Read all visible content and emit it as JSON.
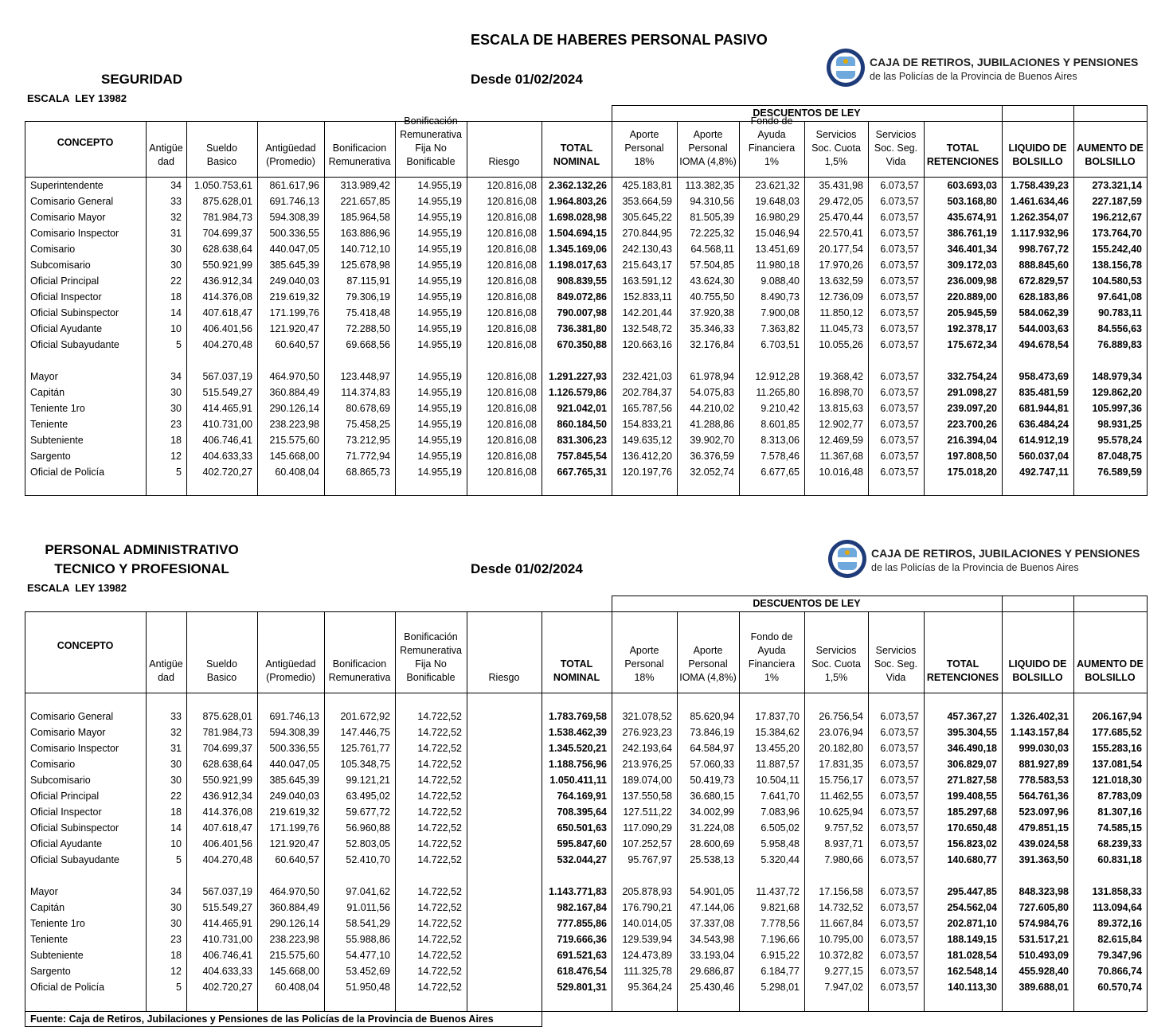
{
  "title": "ESCALA DE HABERES PERSONAL PASIVO",
  "logo": {
    "name": "CAJA DE RETIROS, JUBILACIONES Y PENSIONES",
    "subtitle": "de las Policías de la Provincia de Buenos Aires"
  },
  "columns": [
    [
      "CONCEPTO"
    ],
    [
      "Antigüe",
      "dad"
    ],
    [
      "Sueldo",
      "Basico"
    ],
    [
      "Antigüedad",
      "(Promedio)"
    ],
    [
      "Bonificacion",
      "Remunerativa"
    ],
    [
      "Bonificación",
      "Remunerativa",
      "Fija No",
      "Bonificable"
    ],
    [
      "Riesgo"
    ],
    [
      "TOTAL",
      "NOMINAL"
    ],
    [
      "Aporte",
      "Personal",
      "18%"
    ],
    [
      "Aporte",
      "Personal",
      "IOMA (4,8%)"
    ],
    [
      "Fondo de",
      "Ayuda",
      "Financiera",
      "1%"
    ],
    [
      "Servicios",
      "Soc. Cuota",
      "1,5%"
    ],
    [
      "Servicios",
      "Soc. Seg.",
      "Vida"
    ],
    [
      "TOTAL",
      "RETENCIONES"
    ],
    [
      "LIQUIDO DE",
      "BOLSILLO"
    ],
    [
      "AUMENTO DE",
      "BOLSILLO"
    ]
  ],
  "sections": [
    {
      "heading": [
        "SEGURIDAD"
      ],
      "date": "Desde 01/02/2024",
      "law": "ESCALA  LEY 13982",
      "group_header": "DESCUENTOS DE LEY",
      "groups": [
        [
          [
            "Superintendente",
            34,
            "1.050.753,61",
            "861.617,96",
            "313.989,42",
            "14.955,19",
            "120.816,08",
            "2.362.132,26",
            "425.183,81",
            "113.382,35",
            "23.621,32",
            "35.431,98",
            "6.073,57",
            "603.693,03",
            "1.758.439,23",
            "273.321,14"
          ],
          [
            "Comisario General",
            33,
            "875.628,01",
            "691.746,13",
            "221.657,85",
            "14.955,19",
            "120.816,08",
            "1.964.803,26",
            "353.664,59",
            "94.310,56",
            "19.648,03",
            "29.472,05",
            "6.073,57",
            "503.168,80",
            "1.461.634,46",
            "227.187,59"
          ],
          [
            "Comisario Mayor",
            32,
            "781.984,73",
            "594.308,39",
            "185.964,58",
            "14.955,19",
            "120.816,08",
            "1.698.028,98",
            "305.645,22",
            "81.505,39",
            "16.980,29",
            "25.470,44",
            "6.073,57",
            "435.674,91",
            "1.262.354,07",
            "196.212,67"
          ],
          [
            "Comisario Inspector",
            31,
            "704.699,37",
            "500.336,55",
            "163.886,96",
            "14.955,19",
            "120.816,08",
            "1.504.694,15",
            "270.844,95",
            "72.225,32",
            "15.046,94",
            "22.570,41",
            "6.073,57",
            "386.761,19",
            "1.117.932,96",
            "173.764,70"
          ],
          [
            "Comisario",
            30,
            "628.638,64",
            "440.047,05",
            "140.712,10",
            "14.955,19",
            "120.816,08",
            "1.345.169,06",
            "242.130,43",
            "64.568,11",
            "13.451,69",
            "20.177,54",
            "6.073,57",
            "346.401,34",
            "998.767,72",
            "155.242,40"
          ],
          [
            "Subcomisario",
            30,
            "550.921,99",
            "385.645,39",
            "125.678,98",
            "14.955,19",
            "120.816,08",
            "1.198.017,63",
            "215.643,17",
            "57.504,85",
            "11.980,18",
            "17.970,26",
            "6.073,57",
            "309.172,03",
            "888.845,60",
            "138.156,78"
          ],
          [
            "Oficial Principal",
            22,
            "436.912,34",
            "249.040,03",
            "87.115,91",
            "14.955,19",
            "120.816,08",
            "908.839,55",
            "163.591,12",
            "43.624,30",
            "9.088,40",
            "13.632,59",
            "6.073,57",
            "236.009,98",
            "672.829,57",
            "104.580,53"
          ],
          [
            "Oficial Inspector",
            18,
            "414.376,08",
            "219.619,32",
            "79.306,19",
            "14.955,19",
            "120.816,08",
            "849.072,86",
            "152.833,11",
            "40.755,50",
            "8.490,73",
            "12.736,09",
            "6.073,57",
            "220.889,00",
            "628.183,86",
            "97.641,08"
          ],
          [
            "Oficial Subinspector",
            14,
            "407.618,47",
            "171.199,76",
            "75.418,48",
            "14.955,19",
            "120.816,08",
            "790.007,98",
            "142.201,44",
            "37.920,38",
            "7.900,08",
            "11.850,12",
            "6.073,57",
            "205.945,59",
            "584.062,39",
            "90.783,11"
          ],
          [
            "Oficial Ayudante",
            10,
            "406.401,56",
            "121.920,47",
            "72.288,50",
            "14.955,19",
            "120.816,08",
            "736.381,80",
            "132.548,72",
            "35.346,33",
            "7.363,82",
            "11.045,73",
            "6.073,57",
            "192.378,17",
            "544.003,63",
            "84.556,63"
          ],
          [
            "Oficial Subayudante",
            5,
            "404.270,48",
            "60.640,57",
            "69.668,56",
            "14.955,19",
            "120.816,08",
            "670.350,88",
            "120.663,16",
            "32.176,84",
            "6.703,51",
            "10.055,26",
            "6.073,57",
            "175.672,34",
            "494.678,54",
            "76.889,83"
          ]
        ],
        [
          [
            "Mayor",
            34,
            "567.037,19",
            "464.970,50",
            "123.448,97",
            "14.955,19",
            "120.816,08",
            "1.291.227,93",
            "232.421,03",
            "61.978,94",
            "12.912,28",
            "19.368,42",
            "6.073,57",
            "332.754,24",
            "958.473,69",
            "148.979,34"
          ],
          [
            "Capitán",
            30,
            "515.549,27",
            "360.884,49",
            "114.374,83",
            "14.955,19",
            "120.816,08",
            "1.126.579,86",
            "202.784,37",
            "54.075,83",
            "11.265,80",
            "16.898,70",
            "6.073,57",
            "291.098,27",
            "835.481,59",
            "129.862,20"
          ],
          [
            "Teniente 1ro",
            30,
            "414.465,91",
            "290.126,14",
            "80.678,69",
            "14.955,19",
            "120.816,08",
            "921.042,01",
            "165.787,56",
            "44.210,02",
            "9.210,42",
            "13.815,63",
            "6.073,57",
            "239.097,20",
            "681.944,81",
            "105.997,36"
          ],
          [
            "Teniente",
            23,
            "410.731,00",
            "238.223,98",
            "75.458,25",
            "14.955,19",
            "120.816,08",
            "860.184,50",
            "154.833,21",
            "41.288,86",
            "8.601,85",
            "12.902,77",
            "6.073,57",
            "223.700,26",
            "636.484,24",
            "98.931,25"
          ],
          [
            "Subteniente",
            18,
            "406.746,41",
            "215.575,60",
            "73.212,95",
            "14.955,19",
            "120.816,08",
            "831.306,23",
            "149.635,12",
            "39.902,70",
            "8.313,06",
            "12.469,59",
            "6.073,57",
            "216.394,04",
            "614.912,19",
            "95.578,24"
          ],
          [
            "Sargento",
            12,
            "404.633,33",
            "145.668,00",
            "71.772,94",
            "14.955,19",
            "120.816,08",
            "757.845,54",
            "136.412,20",
            "36.376,59",
            "7.578,46",
            "11.367,68",
            "6.073,57",
            "197.808,50",
            "560.037,04",
            "87.048,75"
          ],
          [
            "Oficial de Policía",
            5,
            "402.720,27",
            "60.408,04",
            "68.865,73",
            "14.955,19",
            "120.816,08",
            "667.765,31",
            "120.197,76",
            "32.052,74",
            "6.677,65",
            "10.016,48",
            "6.073,57",
            "175.018,20",
            "492.747,11",
            "76.589,59"
          ]
        ]
      ]
    },
    {
      "heading": [
        "PERSONAL ADMINISTRATIVO",
        "TECNICO Y PROFESIONAL"
      ],
      "date": "Desde 01/02/2024",
      "law": "ESCALA  LEY 13982",
      "group_header": "DESCUENTOS DE LEY",
      "groups": [
        [
          [
            "Comisario General",
            33,
            "875.628,01",
            "691.746,13",
            "201.672,92",
            "14.722,52",
            null,
            "1.783.769,58",
            "321.078,52",
            "85.620,94",
            "17.837,70",
            "26.756,54",
            "6.073,57",
            "457.367,27",
            "1.326.402,31",
            "206.167,94"
          ],
          [
            "Comisario Mayor",
            32,
            "781.984,73",
            "594.308,39",
            "147.446,75",
            "14.722,52",
            null,
            "1.538.462,39",
            "276.923,23",
            "73.846,19",
            "15.384,62",
            "23.076,94",
            "6.073,57",
            "395.304,55",
            "1.143.157,84",
            "177.685,52"
          ],
          [
            "Comisario Inspector",
            31,
            "704.699,37",
            "500.336,55",
            "125.761,77",
            "14.722,52",
            null,
            "1.345.520,21",
            "242.193,64",
            "64.584,97",
            "13.455,20",
            "20.182,80",
            "6.073,57",
            "346.490,18",
            "999.030,03",
            "155.283,16"
          ],
          [
            "Comisario",
            30,
            "628.638,64",
            "440.047,05",
            "105.348,75",
            "14.722,52",
            null,
            "1.188.756,96",
            "213.976,25",
            "57.060,33",
            "11.887,57",
            "17.831,35",
            "6.073,57",
            "306.829,07",
            "881.927,89",
            "137.081,54"
          ],
          [
            "Subcomisario",
            30,
            "550.921,99",
            "385.645,39",
            "99.121,21",
            "14.722,52",
            null,
            "1.050.411,11",
            "189.074,00",
            "50.419,73",
            "10.504,11",
            "15.756,17",
            "6.073,57",
            "271.827,58",
            "778.583,53",
            "121.018,30"
          ],
          [
            "Oficial Principal",
            22,
            "436.912,34",
            "249.040,03",
            "63.495,02",
            "14.722,52",
            null,
            "764.169,91",
            "137.550,58",
            "36.680,15",
            "7.641,70",
            "11.462,55",
            "6.073,57",
            "199.408,55",
            "564.761,36",
            "87.783,09"
          ],
          [
            "Oficial Inspector",
            18,
            "414.376,08",
            "219.619,32",
            "59.677,72",
            "14.722,52",
            null,
            "708.395,64",
            "127.511,22",
            "34.002,99",
            "7.083,96",
            "10.625,94",
            "6.073,57",
            "185.297,68",
            "523.097,96",
            "81.307,16"
          ],
          [
            "Oficial Subinspector",
            14,
            "407.618,47",
            "171.199,76",
            "56.960,88",
            "14.722,52",
            null,
            "650.501,63",
            "117.090,29",
            "31.224,08",
            "6.505,02",
            "9.757,52",
            "6.073,57",
            "170.650,48",
            "479.851,15",
            "74.585,15"
          ],
          [
            "Oficial Ayudante",
            10,
            "406.401,56",
            "121.920,47",
            "52.803,05",
            "14.722,52",
            null,
            "595.847,60",
            "107.252,57",
            "28.600,69",
            "5.958,48",
            "8.937,71",
            "6.073,57",
            "156.823,02",
            "439.024,58",
            "68.239,33"
          ],
          [
            "Oficial Subayudante",
            5,
            "404.270,48",
            "60.640,57",
            "52.410,70",
            "14.722,52",
            null,
            "532.044,27",
            "95.767,97",
            "25.538,13",
            "5.320,44",
            "7.980,66",
            "6.073,57",
            "140.680,77",
            "391.363,50",
            "60.831,18"
          ]
        ],
        [
          [
            "Mayor",
            34,
            "567.037,19",
            "464.970,50",
            "97.041,62",
            "14.722,52",
            null,
            "1.143.771,83",
            "205.878,93",
            "54.901,05",
            "11.437,72",
            "17.156,58",
            "6.073,57",
            "295.447,85",
            "848.323,98",
            "131.858,33"
          ],
          [
            "Capitán",
            30,
            "515.549,27",
            "360.884,49",
            "91.011,56",
            "14.722,52",
            null,
            "982.167,84",
            "176.790,21",
            "47.144,06",
            "9.821,68",
            "14.732,52",
            "6.073,57",
            "254.562,04",
            "727.605,80",
            "113.094,64"
          ],
          [
            "Teniente 1ro",
            30,
            "414.465,91",
            "290.126,14",
            "58.541,29",
            "14.722,52",
            null,
            "777.855,86",
            "140.014,05",
            "37.337,08",
            "7.778,56",
            "11.667,84",
            "6.073,57",
            "202.871,10",
            "574.984,76",
            "89.372,16"
          ],
          [
            "Teniente",
            23,
            "410.731,00",
            "238.223,98",
            "55.988,86",
            "14.722,52",
            null,
            "719.666,36",
            "129.539,94",
            "34.543,98",
            "7.196,66",
            "10.795,00",
            "6.073,57",
            "188.149,15",
            "531.517,21",
            "82.615,84"
          ],
          [
            "Subteniente",
            18,
            "406.746,41",
            "215.575,60",
            "54.477,10",
            "14.722,52",
            null,
            "691.521,63",
            "124.473,89",
            "33.193,04",
            "6.915,22",
            "10.372,82",
            "6.073,57",
            "181.028,54",
            "510.493,09",
            "79.347,96"
          ],
          [
            "Sargento",
            12,
            "404.633,33",
            "145.668,00",
            "53.452,69",
            "14.722,52",
            null,
            "618.476,54",
            "111.325,78",
            "29.686,87",
            "6.184,77",
            "9.277,15",
            "6.073,57",
            "162.548,14",
            "455.928,40",
            "70.866,74"
          ],
          [
            "Oficial de Policía",
            5,
            "402.720,27",
            "60.408,04",
            "51.950,48",
            "14.722,52",
            null,
            "529.801,31",
            "95.364,24",
            "25.430,46",
            "5.298,01",
            "7.947,02",
            "6.073,57",
            "140.113,30",
            "389.688,01",
            "60.570,74"
          ]
        ]
      ]
    }
  ],
  "source": "Fuente: Caja de Retiros, Jubilaciones y Pensiones de las Policías de la Provincia de Buenos Aires"
}
